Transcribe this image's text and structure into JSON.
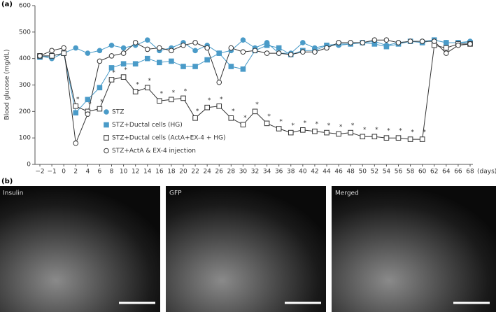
{
  "chart_data": {
    "type": "line",
    "panel_label": "(a)",
    "ylabel": "Blood glucose (mg/dL)",
    "xlabel": "(days)",
    "categories": [
      "−2",
      "−1",
      "0",
      "2",
      "4",
      "6",
      "8",
      "10",
      "12",
      "14",
      "16",
      "18",
      "20",
      "22",
      "24",
      "26",
      "28",
      "30",
      "32",
      "34",
      "36",
      "38",
      "40",
      "42",
      "44",
      "46",
      "48",
      "50",
      "52",
      "54",
      "56",
      "58",
      "60",
      "62",
      "64",
      "66",
      "68"
    ],
    "ylim": [
      0,
      600
    ],
    "yticks": [
      0,
      100,
      200,
      300,
      400,
      500,
      600
    ],
    "grid": false,
    "legend": "lower left",
    "series": [
      {
        "name": "STZ",
        "color": "#4a9bc8",
        "marker": "circle-filled",
        "values": [
          410,
          400,
          420,
          440,
          420,
          430,
          450,
          440,
          450,
          470,
          430,
          440,
          460,
          430,
          450,
          420,
          430,
          470,
          440,
          460,
          420,
          420,
          460,
          440,
          450,
          450,
          455,
          460,
          465,
          450,
          460,
          465,
          465,
          470,
          460,
          460,
          465
        ]
      },
      {
        "name": "STZ+Ductal cells (HG)",
        "color": "#4a9bc8",
        "marker": "square-filled",
        "values": [
          405,
          410,
          420,
          195,
          245,
          290,
          365,
          380,
          380,
          400,
          385,
          390,
          370,
          370,
          395,
          420,
          370,
          360,
          430,
          450,
          440,
          415,
          430,
          430,
          450,
          455,
          455,
          460,
          455,
          445,
          455,
          465,
          460,
          470,
          460,
          460,
          460
        ]
      },
      {
        "name": "STZ+Ductal cells (ActA+EX-4 + HG)",
        "color": "#333333",
        "marker": "square-open",
        "values": [
          410,
          410,
          420,
          220,
          200,
          210,
          320,
          330,
          275,
          290,
          240,
          245,
          250,
          175,
          215,
          220,
          175,
          150,
          200,
          155,
          135,
          120,
          130,
          125,
          120,
          115,
          120,
          105,
          105,
          100,
          100,
          95,
          95,
          450,
          440,
          455,
          455
        ],
        "value_labels": [
          null,
          null,
          null,
          "*",
          "*",
          "*",
          "*",
          "*",
          "*",
          "*",
          "*",
          "*",
          "*",
          "*",
          "*",
          "*",
          "*",
          "*",
          "*",
          "*",
          "*",
          "*",
          "*",
          "*",
          "*",
          "*",
          "*",
          "*",
          "*",
          "*",
          "*",
          "*",
          "*",
          null,
          null,
          null,
          null
        ]
      },
      {
        "name": "STZ+ActA & EX-4 injection",
        "color": "#333333",
        "marker": "circle-open",
        "values": [
          410,
          430,
          440,
          80,
          190,
          390,
          410,
          420,
          460,
          435,
          440,
          430,
          450,
          460,
          440,
          310,
          440,
          425,
          430,
          420,
          420,
          415,
          425,
          425,
          440,
          460,
          460,
          460,
          470,
          470,
          460,
          465,
          465,
          465,
          420,
          450,
          455
        ]
      }
    ]
  },
  "images": {
    "panel_label": "(b)",
    "panels": [
      {
        "label": "Insulin"
      },
      {
        "label": "GFP"
      },
      {
        "label": "Merged"
      }
    ]
  }
}
